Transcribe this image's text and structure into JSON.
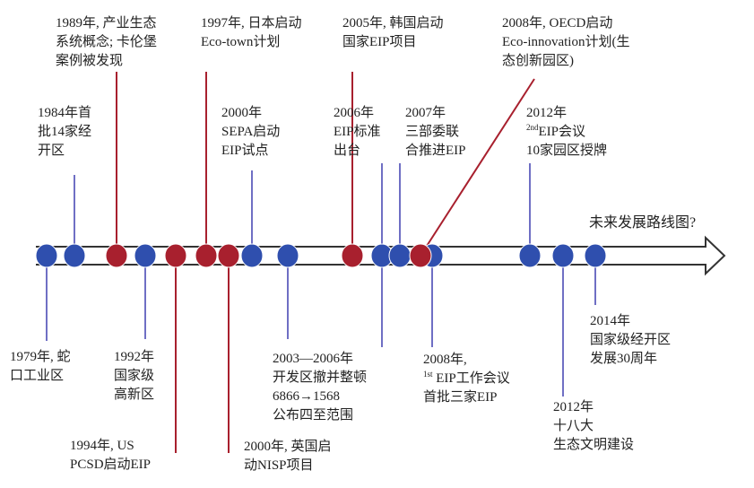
{
  "colors": {
    "blue": "#2f4fae",
    "red": "#a8202e",
    "blue_line": "#6f6fc4",
    "red_line": "#a8202e",
    "arrow": "#333333"
  },
  "future_label": "未来发展路线图?",
  "events_top": [
    {
      "lines": [
        "1989年, 产业生态",
        "系统概念; 卡伦堡",
        "案例被发现"
      ]
    },
    {
      "lines": [
        "1997年, 日本启动",
        "Eco-town计划"
      ]
    },
    {
      "lines": [
        "2005年, 韩国启动",
        "国家EIP项目"
      ]
    },
    {
      "lines": [
        "2008年, OECD启动",
        "Eco-innovation计划(生",
        "态创新园区)"
      ]
    },
    {
      "lines": [
        "1984年首",
        "批14家经",
        "开区"
      ]
    },
    {
      "lines": [
        "2000年",
        "SEPA启动",
        "EIP试点"
      ]
    },
    {
      "lines": [
        "2006年",
        "EIP标准",
        "出台"
      ]
    },
    {
      "lines": [
        "2007年",
        "三部委联",
        "合推进EIP"
      ]
    },
    {
      "lines": [
        "2012年",
        "EIP会议",
        "10家园区授牌"
      ],
      "sup": "2nd"
    }
  ],
  "events_bottom": [
    {
      "lines": [
        "1979年, 蛇",
        "口工业区"
      ]
    },
    {
      "lines": [
        "1992年",
        "国家级",
        "高新区"
      ]
    },
    {
      "lines": [
        "1994年, US",
        "PCSD启动EIP"
      ]
    },
    {
      "lines": [
        "2003—2006年",
        "开发区撤并整顿",
        "6866→1568",
        "公布四至范围"
      ]
    },
    {
      "lines": [
        "2000年, 英国启",
        "动NISP项目"
      ]
    },
    {
      "lines": [
        "2008年,",
        " EIP工作会议",
        "首批三家EIP"
      ],
      "sup": "1st"
    },
    {
      "lines": [
        "2012年",
        "十八大",
        "生态文明建设"
      ]
    },
    {
      "lines": [
        "2014年",
        "国家级经开区",
        "发展30周年"
      ]
    }
  ],
  "dots": [
    {
      "color": "blue"
    },
    {
      "color": "blue"
    },
    {
      "color": "red"
    },
    {
      "color": "blue"
    },
    {
      "color": "red"
    },
    {
      "color": "red"
    },
    {
      "color": "red"
    },
    {
      "color": "blue"
    },
    {
      "color": "blue"
    },
    {
      "color": "red"
    },
    {
      "color": "blue"
    },
    {
      "color": "blue"
    },
    {
      "color": "blue"
    },
    {
      "color": "red"
    },
    {
      "color": "blue"
    },
    {
      "color": "blue"
    },
    {
      "color": "blue"
    }
  ]
}
